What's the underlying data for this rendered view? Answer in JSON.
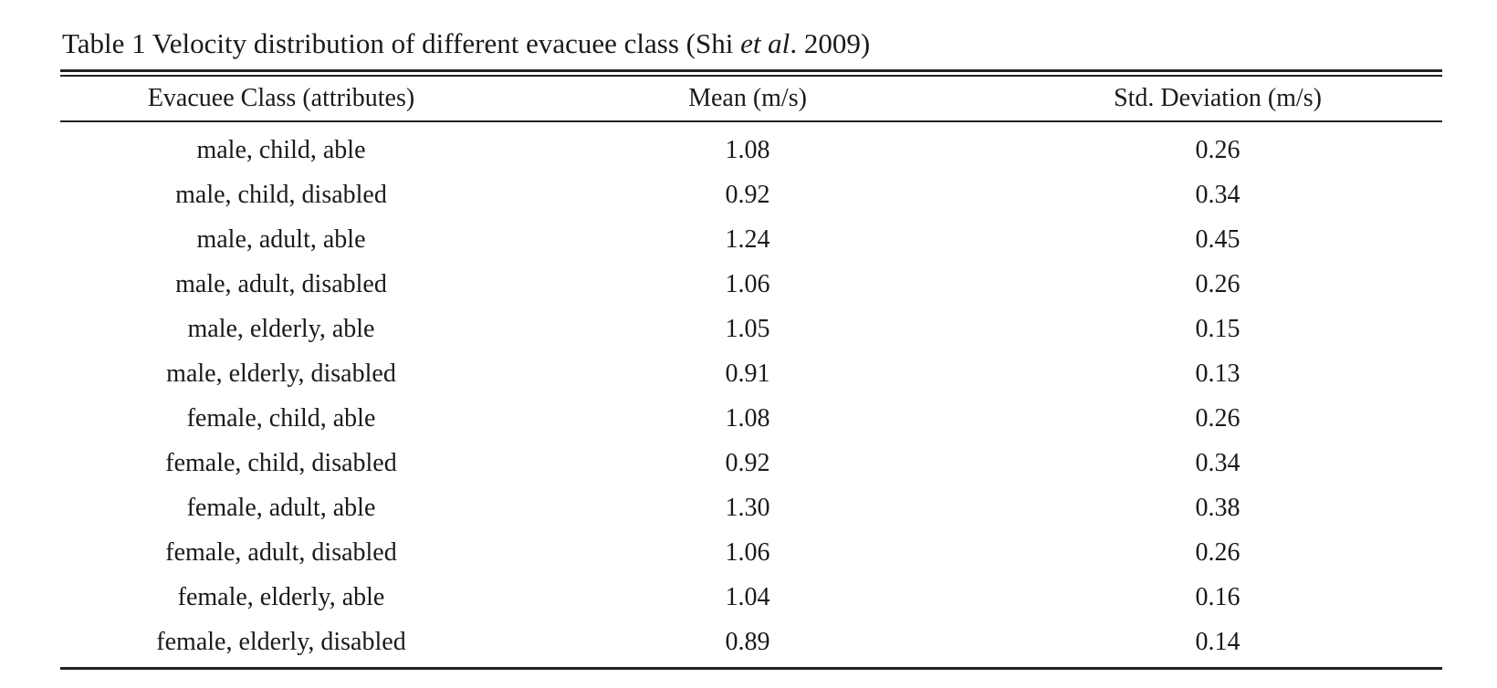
{
  "caption": {
    "prefix": "Table 1 Velocity distribution of different evacuee class (Shi ",
    "italic": "et al",
    "suffix": ". 2009)"
  },
  "table": {
    "headers": [
      "Evacuee Class (attributes)",
      "Mean (m/s)",
      "Std. Deviation (m/s)"
    ],
    "rows": [
      [
        "male, child, able",
        "1.08",
        "0.26"
      ],
      [
        "male, child, disabled",
        "0.92",
        "0.34"
      ],
      [
        "male, adult, able",
        "1.24",
        "0.45"
      ],
      [
        "male, adult, disabled",
        "1.06",
        "0.26"
      ],
      [
        "male, elderly, able",
        "1.05",
        "0.15"
      ],
      [
        "male, elderly, disabled",
        "0.91",
        "0.13"
      ],
      [
        "female, child, able",
        "1.08",
        "0.26"
      ],
      [
        "female, child, disabled",
        "0.92",
        "0.34"
      ],
      [
        "female, adult, able",
        "1.30",
        "0.38"
      ],
      [
        "female, adult, disabled",
        "1.06",
        "0.26"
      ],
      [
        "female, elderly, able",
        "1.04",
        "0.16"
      ],
      [
        "female, elderly, disabled",
        "0.89",
        "0.14"
      ]
    ]
  }
}
